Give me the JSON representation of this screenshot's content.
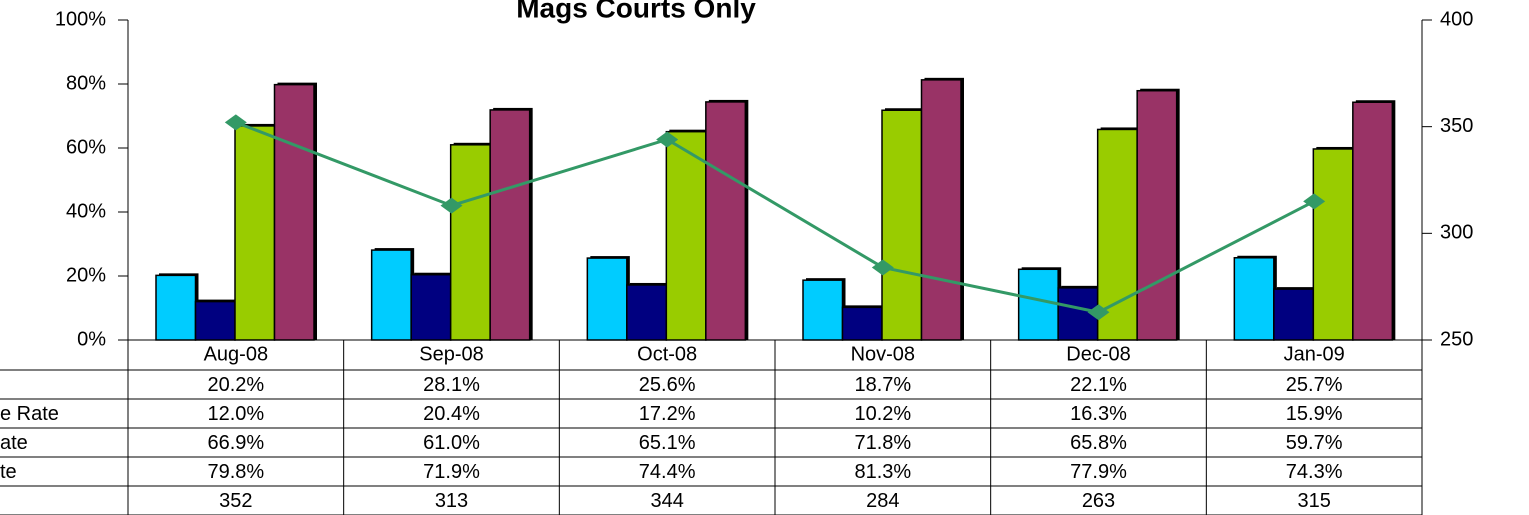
{
  "chart_data": {
    "type": "bar",
    "title": "Mags Courts Only",
    "categories": [
      "Aug-08",
      "Sep-08",
      "Oct-08",
      "Nov-08",
      "Dec-08",
      "Jan-09"
    ],
    "series": [
      {
        "color": "#00ccff",
        "values": [
          20.2,
          28.1,
          25.6,
          18.7,
          22.1,
          25.7
        ],
        "value_labels": [
          "20.2%",
          "28.1%",
          "25.6%",
          "18.7%",
          "22.1%",
          "25.7%"
        ]
      },
      {
        "name": "e Rate",
        "color": "#000080",
        "values": [
          12.0,
          20.4,
          17.2,
          10.2,
          16.3,
          15.9
        ],
        "value_labels": [
          "12.0%",
          "20.4%",
          "17.2%",
          "10.2%",
          "16.3%",
          "15.9%"
        ]
      },
      {
        "name": "ate",
        "color": "#99cc00",
        "values": [
          66.9,
          61.0,
          65.1,
          71.8,
          65.8,
          59.7
        ],
        "value_labels": [
          "66.9%",
          "61.0%",
          "65.1%",
          "71.8%",
          "65.8%",
          "59.7%"
        ]
      },
      {
        "name": "te",
        "color": "#993366",
        "values": [
          79.8,
          71.9,
          74.4,
          81.3,
          77.9,
          74.3
        ],
        "value_labels": [
          "79.8%",
          "71.9%",
          "74.4%",
          "81.3%",
          "77.9%",
          "74.3%"
        ]
      },
      {
        "type": "line",
        "axis": "y2",
        "color": "#339966",
        "values": [
          352,
          313,
          344,
          284,
          263,
          315
        ]
      }
    ],
    "ylim": [
      0,
      100
    ],
    "yticks": [
      {
        "value": 0,
        "label": "0%"
      },
      {
        "value": 20,
        "label": "20%"
      },
      {
        "value": 40,
        "label": "40%"
      },
      {
        "value": 60,
        "label": "60%"
      },
      {
        "value": 80,
        "label": "80%"
      },
      {
        "value": 100,
        "label": "100%"
      }
    ],
    "y2lim": [
      250,
      400
    ],
    "y2ticks": [
      250,
      300,
      350,
      400
    ]
  }
}
